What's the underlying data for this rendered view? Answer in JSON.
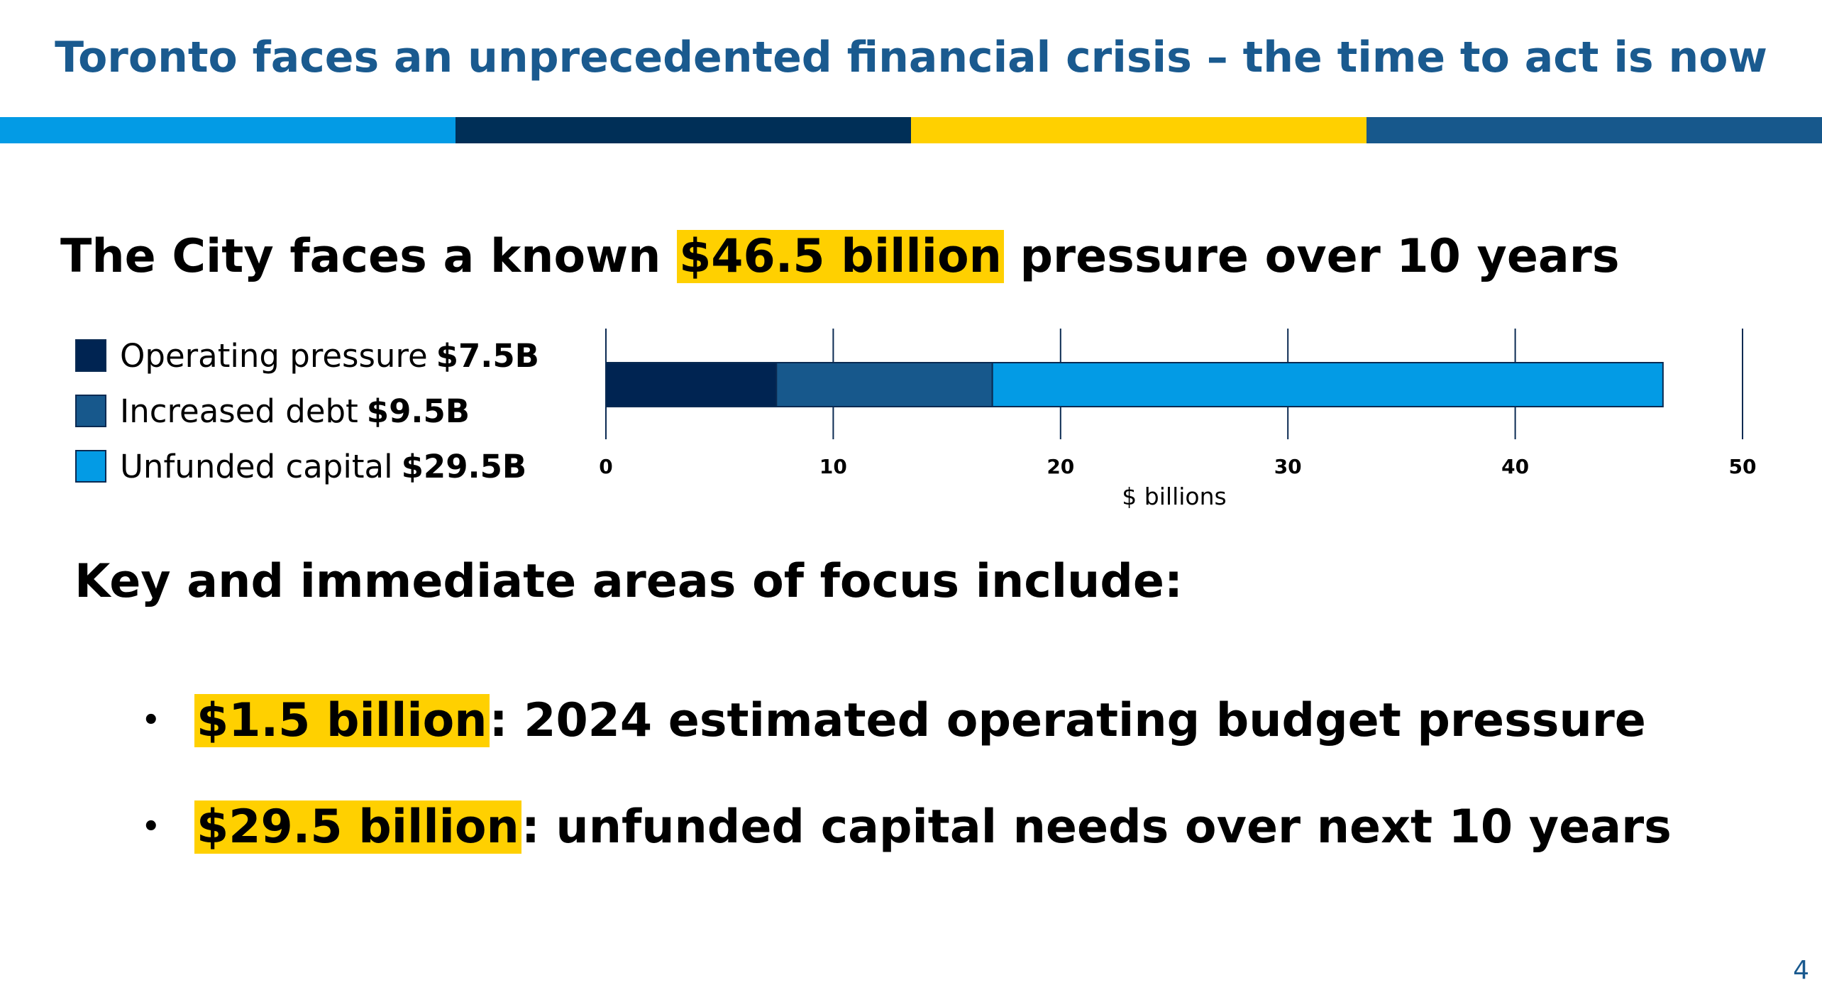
{
  "slide": {
    "title": "Toronto faces an unprecedented financial crisis – the time to act is now",
    "stripe_colors": [
      "#039be5",
      "#002f57",
      "#ffd000",
      "#17588c"
    ],
    "highlight_color": "#ffd000",
    "page_number": "4"
  },
  "headline": {
    "before": "The City faces a known ",
    "highlight": "$46.5 billion",
    "after": " pressure over 10 years"
  },
  "legend": [
    {
      "label": "Operating pressure",
      "value": "$7.5B",
      "color": "#002452"
    },
    {
      "label": "Increased debt",
      "value": "$9.5B",
      "color": "#17588c"
    },
    {
      "label": "Unfunded capital",
      "value": "$29.5B",
      "color": "#039be5"
    }
  ],
  "chart_data": {
    "type": "bar",
    "orientation": "horizontal",
    "stacked": true,
    "categories": [
      ""
    ],
    "series": [
      {
        "name": "Operating pressure",
        "values": [
          7.5
        ],
        "color": "#002452"
      },
      {
        "name": "Increased debt",
        "values": [
          9.5
        ],
        "color": "#17588c"
      },
      {
        "name": "Unfunded capital",
        "values": [
          29.5
        ],
        "color": "#039be5"
      }
    ],
    "xlabel": "$ billions",
    "ylabel": "",
    "xlim": [
      0,
      50
    ],
    "xticks": [
      0,
      10,
      20,
      30,
      40,
      50
    ],
    "grid": true,
    "legend_position": "left"
  },
  "focus": {
    "heading": "Key and immediate areas of focus include:",
    "bullets": [
      {
        "highlight": "$1.5 billion",
        "text": ": 2024 estimated operating budget pressure"
      },
      {
        "highlight": "$29.5 billion",
        "text": ": unfunded capital needs over next 10 years"
      }
    ],
    "bullet_symbol": "•"
  }
}
